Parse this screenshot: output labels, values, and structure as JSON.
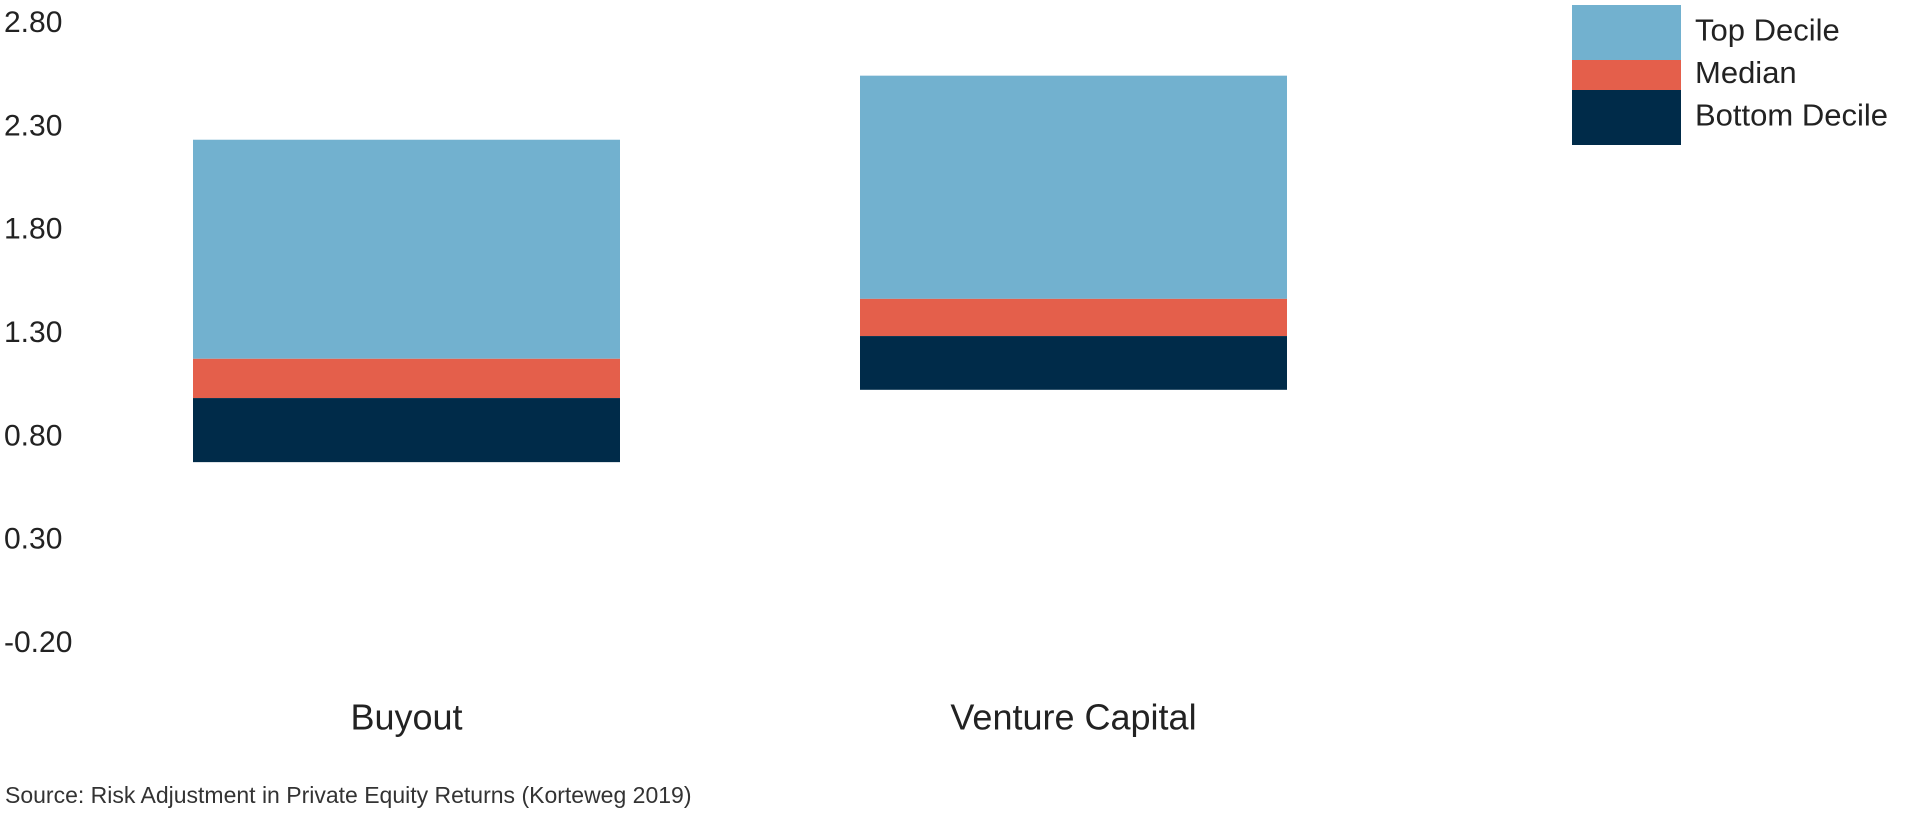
{
  "chart_data": {
    "type": "floating-bar",
    "categories": [
      "Buyout",
      "Venture Capital"
    ],
    "series": [
      {
        "name": "Top Decile",
        "color": "#72b1cf",
        "values": [
          [
            1.18,
            2.24
          ],
          [
            1.47,
            2.55
          ]
        ]
      },
      {
        "name": "Median",
        "color": "#e45f4b",
        "values": [
          [
            0.99,
            1.18
          ],
          [
            1.29,
            1.47
          ]
        ]
      },
      {
        "name": "Bottom Decile",
        "color": "#002b49",
        "values": [
          [
            0.68,
            0.99
          ],
          [
            1.03,
            1.29
          ]
        ]
      }
    ],
    "ylim": [
      -0.2,
      2.8
    ],
    "yticks": [
      {
        "value": 2.8,
        "label": "2.80"
      },
      {
        "value": 2.3,
        "label": "2.30"
      },
      {
        "value": 1.8,
        "label": "1.80"
      },
      {
        "value": 1.3,
        "label": "1.30"
      },
      {
        "value": 0.8,
        "label": "0.80"
      },
      {
        "value": 0.3,
        "label": "0.30"
      },
      {
        "value": -0.2,
        "label": "-0.20"
      }
    ],
    "grid": false,
    "legend": "top-right",
    "source": "Source: Risk Adjustment in Private Equity Returns (Korteweg 2019)"
  }
}
